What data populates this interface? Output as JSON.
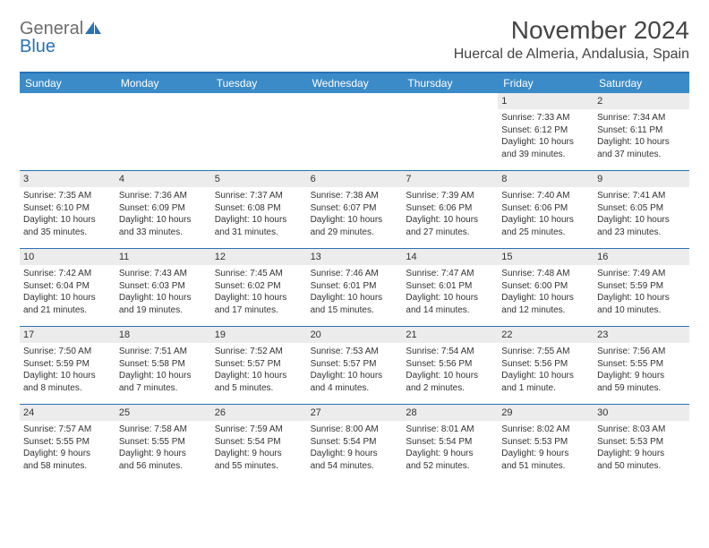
{
  "logo": {
    "word1": "General",
    "word2": "Blue"
  },
  "title": "November 2024",
  "location": "Huercal de Almeria, Andalusia, Spain",
  "colors": {
    "header_bg": "#3b8bc9",
    "header_border": "#2a72b5",
    "daynum_bg": "#ececec",
    "text": "#333333",
    "logo_gray": "#6d6d6d",
    "logo_blue": "#2a72b5"
  },
  "weekdays": [
    "Sunday",
    "Monday",
    "Tuesday",
    "Wednesday",
    "Thursday",
    "Friday",
    "Saturday"
  ],
  "weeks": [
    [
      null,
      null,
      null,
      null,
      null,
      {
        "n": "1",
        "sunrise": "Sunrise: 7:33 AM",
        "sunset": "Sunset: 6:12 PM",
        "d1": "Daylight: 10 hours",
        "d2": "and 39 minutes."
      },
      {
        "n": "2",
        "sunrise": "Sunrise: 7:34 AM",
        "sunset": "Sunset: 6:11 PM",
        "d1": "Daylight: 10 hours",
        "d2": "and 37 minutes."
      }
    ],
    [
      {
        "n": "3",
        "sunrise": "Sunrise: 7:35 AM",
        "sunset": "Sunset: 6:10 PM",
        "d1": "Daylight: 10 hours",
        "d2": "and 35 minutes."
      },
      {
        "n": "4",
        "sunrise": "Sunrise: 7:36 AM",
        "sunset": "Sunset: 6:09 PM",
        "d1": "Daylight: 10 hours",
        "d2": "and 33 minutes."
      },
      {
        "n": "5",
        "sunrise": "Sunrise: 7:37 AM",
        "sunset": "Sunset: 6:08 PM",
        "d1": "Daylight: 10 hours",
        "d2": "and 31 minutes."
      },
      {
        "n": "6",
        "sunrise": "Sunrise: 7:38 AM",
        "sunset": "Sunset: 6:07 PM",
        "d1": "Daylight: 10 hours",
        "d2": "and 29 minutes."
      },
      {
        "n": "7",
        "sunrise": "Sunrise: 7:39 AM",
        "sunset": "Sunset: 6:06 PM",
        "d1": "Daylight: 10 hours",
        "d2": "and 27 minutes."
      },
      {
        "n": "8",
        "sunrise": "Sunrise: 7:40 AM",
        "sunset": "Sunset: 6:06 PM",
        "d1": "Daylight: 10 hours",
        "d2": "and 25 minutes."
      },
      {
        "n": "9",
        "sunrise": "Sunrise: 7:41 AM",
        "sunset": "Sunset: 6:05 PM",
        "d1": "Daylight: 10 hours",
        "d2": "and 23 minutes."
      }
    ],
    [
      {
        "n": "10",
        "sunrise": "Sunrise: 7:42 AM",
        "sunset": "Sunset: 6:04 PM",
        "d1": "Daylight: 10 hours",
        "d2": "and 21 minutes."
      },
      {
        "n": "11",
        "sunrise": "Sunrise: 7:43 AM",
        "sunset": "Sunset: 6:03 PM",
        "d1": "Daylight: 10 hours",
        "d2": "and 19 minutes."
      },
      {
        "n": "12",
        "sunrise": "Sunrise: 7:45 AM",
        "sunset": "Sunset: 6:02 PM",
        "d1": "Daylight: 10 hours",
        "d2": "and 17 minutes."
      },
      {
        "n": "13",
        "sunrise": "Sunrise: 7:46 AM",
        "sunset": "Sunset: 6:01 PM",
        "d1": "Daylight: 10 hours",
        "d2": "and 15 minutes."
      },
      {
        "n": "14",
        "sunrise": "Sunrise: 7:47 AM",
        "sunset": "Sunset: 6:01 PM",
        "d1": "Daylight: 10 hours",
        "d2": "and 14 minutes."
      },
      {
        "n": "15",
        "sunrise": "Sunrise: 7:48 AM",
        "sunset": "Sunset: 6:00 PM",
        "d1": "Daylight: 10 hours",
        "d2": "and 12 minutes."
      },
      {
        "n": "16",
        "sunrise": "Sunrise: 7:49 AM",
        "sunset": "Sunset: 5:59 PM",
        "d1": "Daylight: 10 hours",
        "d2": "and 10 minutes."
      }
    ],
    [
      {
        "n": "17",
        "sunrise": "Sunrise: 7:50 AM",
        "sunset": "Sunset: 5:59 PM",
        "d1": "Daylight: 10 hours",
        "d2": "and 8 minutes."
      },
      {
        "n": "18",
        "sunrise": "Sunrise: 7:51 AM",
        "sunset": "Sunset: 5:58 PM",
        "d1": "Daylight: 10 hours",
        "d2": "and 7 minutes."
      },
      {
        "n": "19",
        "sunrise": "Sunrise: 7:52 AM",
        "sunset": "Sunset: 5:57 PM",
        "d1": "Daylight: 10 hours",
        "d2": "and 5 minutes."
      },
      {
        "n": "20",
        "sunrise": "Sunrise: 7:53 AM",
        "sunset": "Sunset: 5:57 PM",
        "d1": "Daylight: 10 hours",
        "d2": "and 4 minutes."
      },
      {
        "n": "21",
        "sunrise": "Sunrise: 7:54 AM",
        "sunset": "Sunset: 5:56 PM",
        "d1": "Daylight: 10 hours",
        "d2": "and 2 minutes."
      },
      {
        "n": "22",
        "sunrise": "Sunrise: 7:55 AM",
        "sunset": "Sunset: 5:56 PM",
        "d1": "Daylight: 10 hours",
        "d2": "and 1 minute."
      },
      {
        "n": "23",
        "sunrise": "Sunrise: 7:56 AM",
        "sunset": "Sunset: 5:55 PM",
        "d1": "Daylight: 9 hours",
        "d2": "and 59 minutes."
      }
    ],
    [
      {
        "n": "24",
        "sunrise": "Sunrise: 7:57 AM",
        "sunset": "Sunset: 5:55 PM",
        "d1": "Daylight: 9 hours",
        "d2": "and 58 minutes."
      },
      {
        "n": "25",
        "sunrise": "Sunrise: 7:58 AM",
        "sunset": "Sunset: 5:55 PM",
        "d1": "Daylight: 9 hours",
        "d2": "and 56 minutes."
      },
      {
        "n": "26",
        "sunrise": "Sunrise: 7:59 AM",
        "sunset": "Sunset: 5:54 PM",
        "d1": "Daylight: 9 hours",
        "d2": "and 55 minutes."
      },
      {
        "n": "27",
        "sunrise": "Sunrise: 8:00 AM",
        "sunset": "Sunset: 5:54 PM",
        "d1": "Daylight: 9 hours",
        "d2": "and 54 minutes."
      },
      {
        "n": "28",
        "sunrise": "Sunrise: 8:01 AM",
        "sunset": "Sunset: 5:54 PM",
        "d1": "Daylight: 9 hours",
        "d2": "and 52 minutes."
      },
      {
        "n": "29",
        "sunrise": "Sunrise: 8:02 AM",
        "sunset": "Sunset: 5:53 PM",
        "d1": "Daylight: 9 hours",
        "d2": "and 51 minutes."
      },
      {
        "n": "30",
        "sunrise": "Sunrise: 8:03 AM",
        "sunset": "Sunset: 5:53 PM",
        "d1": "Daylight: 9 hours",
        "d2": "and 50 minutes."
      }
    ]
  ]
}
